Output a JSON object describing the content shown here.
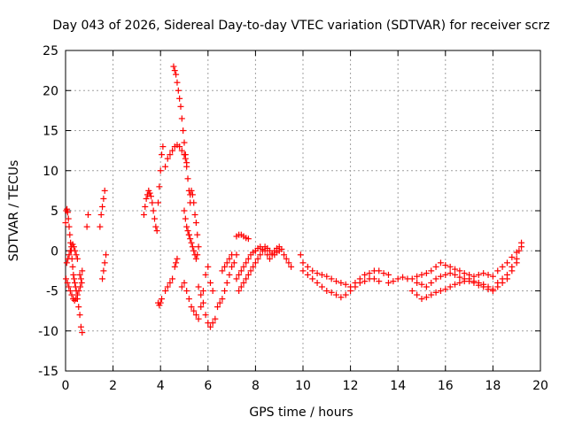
{
  "chart_data": {
    "type": "scatter",
    "title": "Day 043 of 2026, Sidereal Day-to-day VTEC variation (SDTVAR) for receiver scrz",
    "xlabel": "GPS time / hours",
    "ylabel": "SDTVAR / TECUs",
    "xlim": [
      0,
      20
    ],
    "ylim": [
      -15,
      25
    ],
    "xticks": [
      "0",
      "2",
      "4",
      "6",
      "8",
      "10",
      "12",
      "14",
      "16",
      "18",
      "20"
    ],
    "yticks": [
      "25",
      "20",
      "15",
      "10",
      "5",
      "0",
      "-5",
      "-10",
      "-15"
    ],
    "grid": true,
    "marker": "+",
    "color": "#ff0000",
    "series": [
      {
        "name": "SDTVAR",
        "x": [
          0.0,
          0.03,
          0.06,
          0.09,
          0.12,
          0.15,
          0.18,
          0.21,
          0.24,
          0.27,
          0.3,
          0.33,
          0.36,
          0.39,
          0.42,
          0.45,
          0.5,
          0.55,
          0.6,
          0.65,
          0.7,
          0.05,
          0.1,
          0.15,
          0.2,
          0.25,
          0.3,
          0.35,
          0.4,
          0.45,
          0.5,
          0.02,
          0.08,
          0.14,
          0.2,
          0.26,
          0.32,
          0.38,
          0.44,
          0.5,
          0.56,
          0.62,
          0.68,
          0.6,
          0.65,
          0.7,
          0.9,
          0.95,
          1.45,
          1.5,
          1.55,
          1.6,
          1.65,
          1.55,
          1.6,
          1.65,
          1.7,
          3.3,
          3.35,
          3.4,
          3.45,
          3.5,
          3.55,
          3.6,
          3.65,
          3.7,
          3.75,
          3.8,
          3.85,
          3.9,
          3.95,
          4.0,
          4.05,
          4.1,
          3.9,
          3.95,
          4.0,
          4.05,
          4.2,
          4.3,
          4.4,
          4.5,
          4.6,
          4.7,
          4.8,
          4.9,
          5.0,
          5.05,
          5.1,
          4.55,
          4.6,
          4.65,
          4.7,
          4.75,
          4.8,
          4.85,
          4.9,
          4.95,
          5.0,
          5.05,
          5.1,
          5.15,
          5.2,
          5.25,
          5.0,
          5.05,
          5.1,
          5.15,
          5.2,
          5.25,
          5.3,
          5.35,
          5.4,
          5.45,
          5.5,
          5.55,
          5.2,
          5.25,
          5.3,
          5.35,
          5.4,
          5.45,
          5.5,
          5.55,
          5.6,
          4.2,
          4.3,
          4.4,
          4.5,
          4.6,
          4.65,
          4.7,
          4.9,
          5.0,
          5.1,
          5.2,
          5.3,
          5.4,
          5.5,
          5.6,
          5.7,
          5.8,
          5.9,
          6.0,
          6.1,
          6.2,
          5.6,
          5.7,
          5.8,
          5.9,
          6.0,
          6.1,
          6.2,
          6.3,
          6.4,
          6.5,
          6.6,
          6.7,
          6.8,
          6.9,
          7.0,
          7.1,
          7.2,
          6.6,
          6.7,
          6.8,
          6.9,
          7.0,
          7.2,
          7.3,
          7.4,
          7.5,
          7.6,
          7.7,
          7.2,
          7.3,
          7.4,
          7.5,
          7.6,
          7.7,
          7.8,
          7.9,
          8.0,
          8.1,
          8.2,
          8.3,
          8.4,
          8.5,
          8.6,
          8.7,
          8.8,
          8.9,
          9.0,
          9.1,
          9.2,
          9.3,
          9.4,
          9.5,
          7.3,
          7.4,
          7.5,
          7.6,
          7.7,
          7.8,
          7.9,
          8.0,
          8.1,
          8.2,
          8.3,
          8.4,
          8.5,
          8.6,
          8.7,
          8.8,
          8.9,
          9.0,
          9.9,
          10.0,
          10.2,
          10.4,
          10.6,
          10.8,
          11.0,
          11.2,
          11.4,
          11.6,
          11.8,
          12.0,
          12.2,
          12.4,
          12.6,
          12.8,
          13.0,
          13.2,
          13.4,
          13.6,
          10.0,
          10.2,
          10.4,
          10.6,
          10.8,
          11.0,
          11.2,
          11.4,
          11.6,
          11.8,
          12.0,
          12.2,
          12.4,
          12.6,
          12.8,
          13.0,
          13.2,
          13.6,
          13.8,
          14.0,
          14.2,
          14.4,
          14.6,
          14.8,
          15.0,
          15.2,
          15.4,
          15.6,
          15.8,
          16.0,
          16.2,
          16.4,
          16.6,
          16.8,
          17.0,
          17.2,
          17.4,
          17.6,
          17.8,
          18.0,
          18.2,
          18.4,
          18.6,
          18.8,
          19.0,
          19.2,
          14.6,
          14.8,
          15.0,
          15.2,
          15.4,
          15.6,
          15.8,
          16.0,
          16.2,
          16.4,
          16.6,
          16.8,
          17.0,
          17.2,
          17.4,
          17.6,
          17.8,
          18.0,
          18.2,
          18.4,
          18.6,
          18.8,
          19.0,
          14.8,
          15.0,
          15.2,
          15.4,
          15.6,
          15.8,
          16.0,
          16.2,
          16.4,
          16.6,
          16.8,
          17.0,
          17.2,
          17.4,
          17.6,
          17.8,
          18.0,
          18.2,
          18.4,
          18.6,
          18.8,
          19.0,
          19.1,
          19.2
        ],
        "y": [
          3.5,
          5.0,
          5.2,
          4.8,
          4.0,
          3.0,
          2.0,
          1.0,
          0.0,
          -1.0,
          -2.0,
          -3.0,
          -3.5,
          -4.0,
          -4.5,
          -5.0,
          -6.0,
          -7.0,
          -8.0,
          -9.5,
          -10.2,
          -1.5,
          -1.0,
          -0.5,
          0.0,
          0.5,
          0.8,
          0.5,
          0.0,
          -0.5,
          -1.0,
          -3.5,
          -4.0,
          -4.5,
          -5.0,
          -5.5,
          -6.0,
          -6.2,
          -6.0,
          -5.5,
          -5.0,
          -4.5,
          -4.0,
          -3.0,
          -3.5,
          -2.5,
          3.0,
          4.5,
          3.0,
          4.5,
          5.5,
          6.5,
          7.5,
          -3.5,
          -2.5,
          -1.5,
          -0.5,
          4.5,
          5.5,
          6.5,
          7.0,
          7.5,
          7.2,
          6.8,
          6.0,
          5.0,
          4.0,
          3.0,
          2.5,
          6.0,
          8.0,
          10.0,
          12.0,
          13.0,
          -6.5,
          -6.8,
          -6.5,
          -6.0,
          10.5,
          11.5,
          12.0,
          12.5,
          13.0,
          13.2,
          13.0,
          12.5,
          12.0,
          11.5,
          11.0,
          23.0,
          22.5,
          22.0,
          21.0,
          20.0,
          19.0,
          18.0,
          16.5,
          15.0,
          13.5,
          12.0,
          10.5,
          9.0,
          7.5,
          6.0,
          5.0,
          4.0,
          3.0,
          2.5,
          2.0,
          7.0,
          7.5,
          7.0,
          6.0,
          4.5,
          3.5,
          2.0,
          2.0,
          1.5,
          1.0,
          0.5,
          0.0,
          -0.5,
          -1.0,
          -0.5,
          0.5,
          -5.0,
          -4.5,
          -4.0,
          -3.5,
          -2.0,
          -1.5,
          -1.0,
          -4.5,
          -4.0,
          -5.0,
          -6.0,
          -7.0,
          -7.5,
          -8.0,
          -8.5,
          -7.0,
          -5.0,
          -3.0,
          -2.0,
          -4.0,
          -5.0,
          -4.5,
          -5.5,
          -6.5,
          -8.0,
          -9.0,
          -9.5,
          -9.0,
          -8.5,
          -7.0,
          -6.5,
          -6.0,
          -5.0,
          -4.0,
          -3.0,
          -2.0,
          -1.5,
          -0.5,
          -2.5,
          -2.0,
          -1.5,
          -1.0,
          -0.5,
          1.8,
          2.0,
          2.0,
          1.8,
          1.6,
          1.5,
          -3.5,
          -3.0,
          -2.5,
          -2.0,
          -1.5,
          -1.0,
          -0.5,
          -0.2,
          0.0,
          0.3,
          0.5,
          0.2,
          0.0,
          -0.5,
          -1.0,
          -0.5,
          0.0,
          0.3,
          0.5,
          0.2,
          -0.5,
          -1.0,
          -1.5,
          -2.0,
          -5.0,
          -4.5,
          -4.0,
          -3.5,
          -3.0,
          -2.5,
          -2.0,
          -1.5,
          -1.0,
          -0.5,
          0.0,
          0.5,
          0.3,
          0.0,
          -0.3,
          -0.5,
          -0.2,
          0.0,
          -0.5,
          -1.5,
          -2.0,
          -2.5,
          -2.8,
          -3.0,
          -3.2,
          -3.5,
          -3.8,
          -4.0,
          -4.2,
          -4.5,
          -4.0,
          -3.5,
          -3.0,
          -2.8,
          -2.5,
          -2.5,
          -2.8,
          -3.0,
          -2.5,
          -3.0,
          -3.5,
          -4.0,
          -4.5,
          -5.0,
          -5.2,
          -5.5,
          -5.8,
          -5.5,
          -5.0,
          -4.5,
          -4.0,
          -3.8,
          -3.5,
          -3.5,
          -3.8,
          -4.0,
          -3.8,
          -3.5,
          -3.3,
          -3.5,
          -3.5,
          -3.2,
          -3.0,
          -2.8,
          -2.5,
          -2.0,
          -1.5,
          -1.8,
          -2.0,
          -2.3,
          -2.5,
          -2.8,
          -3.0,
          -3.2,
          -3.0,
          -2.8,
          -3.0,
          -3.2,
          -2.5,
          -2.0,
          -1.5,
          -0.8,
          -0.2,
          0.5,
          -5.0,
          -5.5,
          -6.0,
          -5.8,
          -5.5,
          -5.2,
          -5.0,
          -4.8,
          -4.5,
          -4.2,
          -4.0,
          -3.8,
          -3.5,
          -3.8,
          -4.0,
          -4.2,
          -4.5,
          -4.8,
          -4.5,
          -4.0,
          -3.5,
          -2.5,
          -1.5,
          -4.0,
          -4.2,
          -4.5,
          -4.0,
          -3.5,
          -3.2,
          -3.0,
          -2.8,
          -3.0,
          -3.3,
          -3.5,
          -3.8,
          -4.0,
          -4.3,
          -4.5,
          -4.8,
          -5.0,
          -4.0,
          -3.5,
          -3.0,
          -2.0,
          -1.0,
          0.0,
          1.0
        ]
      }
    ]
  }
}
